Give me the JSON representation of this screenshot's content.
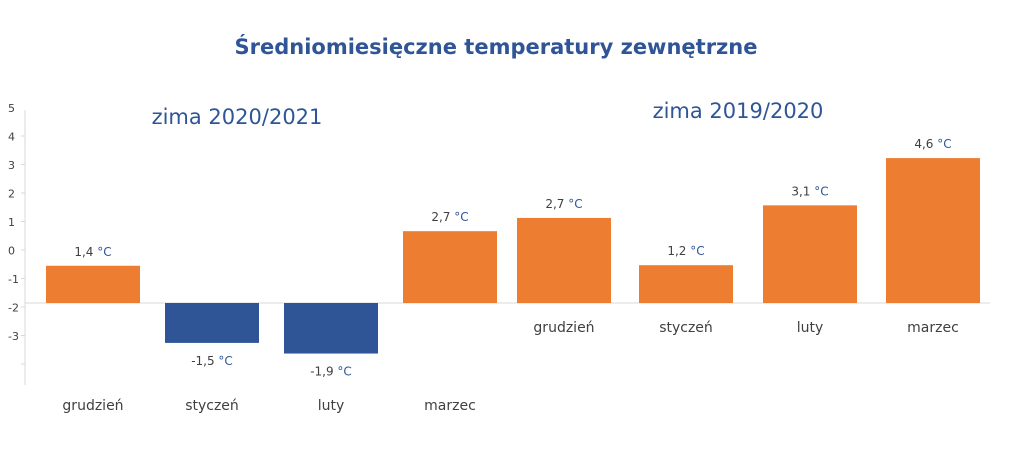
{
  "chart_data": {
    "type": "bar",
    "title": "Średniomiesięczne temperatury zewnętrzne",
    "xlabel": "",
    "ylabel": "",
    "ylim": [
      -3,
      5
    ],
    "yticks": [
      "5",
      "4",
      "3",
      "2",
      "1",
      "0",
      "-1",
      "-2",
      "-3"
    ],
    "unit": "°C",
    "colors": {
      "positive": "#ed7d31",
      "negative": "#2f5597",
      "text": "#404040",
      "title": "#2f5597"
    },
    "groups": [
      {
        "name": "zima 2020/2021",
        "categories": [
          "grudzień",
          "styczeń",
          "luty",
          "marzec"
        ],
        "values": [
          1.4,
          -1.5,
          -1.9,
          2.7
        ],
        "labels": [
          "1,4",
          "-1,5",
          "-1,9",
          "2,7"
        ]
      },
      {
        "name": "zima 2019/2020",
        "categories": [
          "grudzień",
          "styczeń",
          "luty",
          "marzec"
        ],
        "values": [
          2.7,
          1.2,
          3.1,
          4.6
        ],
        "labels": [
          "2,7",
          "1,2",
          "3,1",
          "4,6"
        ]
      }
    ]
  }
}
